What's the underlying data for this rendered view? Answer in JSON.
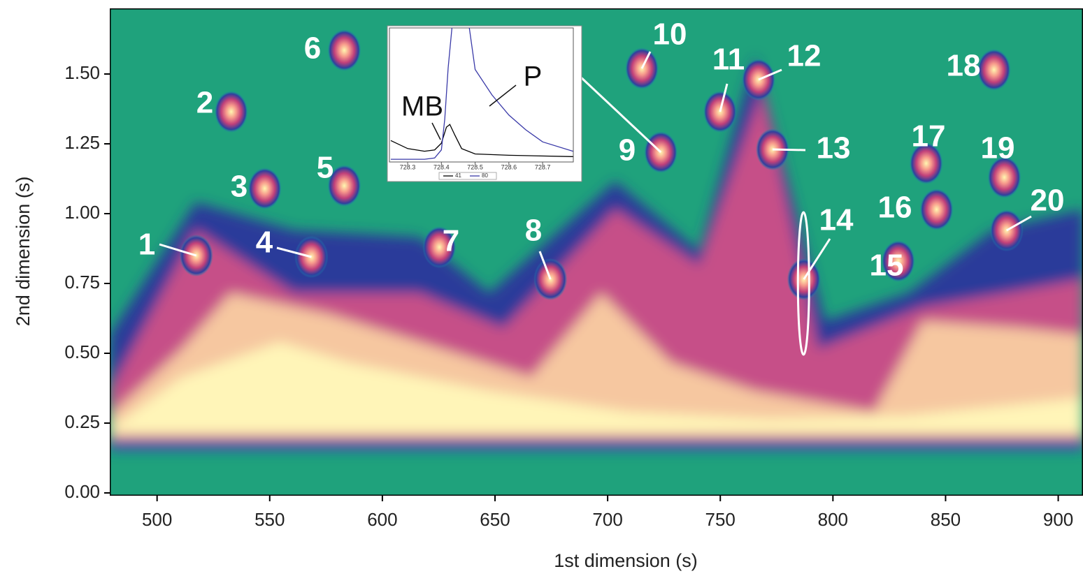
{
  "chart_data": [
    {
      "type": "contour",
      "xlabel": "1st dimension (s)",
      "ylabel": "2nd dimension (s)",
      "xlim": [
        479,
        911
      ],
      "ylim": [
        -0.01,
        1.735
      ],
      "xticks": [
        500,
        550,
        600,
        650,
        700,
        750,
        800,
        850,
        900
      ],
      "yticks": [
        {
          "value": 0,
          "label": "0.00"
        },
        0.25,
        {
          "value": 0.5,
          "label": "0.50"
        },
        0.75,
        {
          "value": 1,
          "label": "1.00"
        },
        1.25,
        {
          "value": 1.5,
          "label": "1.50"
        }
      ],
      "peaks": [
        {
          "label": "1",
          "x": 517.4,
          "y": 0.85
        },
        {
          "label": "2",
          "x": 532.9,
          "y": 1.365
        },
        {
          "label": "3",
          "x": 547.8,
          "y": 1.09
        },
        {
          "label": "4",
          "x": 568.5,
          "y": 0.845
        },
        {
          "label": "5",
          "x": 583.1,
          "y": 1.1
        },
        {
          "label": "6",
          "x": 583.1,
          "y": 1.585
        },
        {
          "label": "7",
          "x": 625.3,
          "y": 0.88
        },
        {
          "label": "8",
          "x": 674.6,
          "y": 0.765
        },
        {
          "label": "9",
          "x": 723.6,
          "y": 1.22
        },
        {
          "label": "10",
          "x": 715.2,
          "y": 1.52
        },
        {
          "label": "11",
          "x": 749.9,
          "y": 1.365
        },
        {
          "label": "12",
          "x": 767,
          "y": 1.48
        },
        {
          "label": "13",
          "x": 773.2,
          "y": 1.23
        },
        {
          "label": "14",
          "x": 787.1,
          "y": 0.765
        },
        {
          "label": "15",
          "x": 829,
          "y": 0.83
        },
        {
          "label": "16",
          "x": 846,
          "y": 1.015
        },
        {
          "label": "17",
          "x": 841.4,
          "y": 1.18
        },
        {
          "label": "18",
          "x": 871.5,
          "y": 1.515
        },
        {
          "label": "19",
          "x": 876.1,
          "y": 1.13
        },
        {
          "label": "20",
          "x": 877.1,
          "y": 0.94
        }
      ]
    },
    {
      "type": "line",
      "xlim": [
        728.246,
        728.791
      ],
      "ylim": [
        0,
        100
      ],
      "xticks": [
        728.3,
        728.4,
        728.5,
        728.6,
        728.7
      ],
      "annotations": [
        "MB",
        "P"
      ],
      "series": [
        {
          "name": "41",
          "color": "#000000",
          "x": [
            728.25,
            728.3,
            728.35,
            728.38,
            728.4,
            728.415,
            728.425,
            728.44,
            728.46,
            728.5,
            728.6,
            728.79
          ],
          "values": [
            16,
            10,
            8,
            9,
            14,
            26,
            28,
            20,
            10,
            6,
            5,
            4
          ]
        },
        {
          "name": "80",
          "color": "#3a3aa8",
          "x": [
            728.25,
            728.35,
            728.38,
            728.4,
            728.41,
            728.42,
            728.45,
            728.48,
            728.5,
            728.55,
            728.6,
            728.65,
            728.7,
            728.79
          ],
          "values": [
            2,
            2,
            3,
            9,
            32,
            70,
            150,
            105,
            69,
            50,
            35,
            24,
            15,
            8
          ]
        }
      ]
    }
  ]
}
